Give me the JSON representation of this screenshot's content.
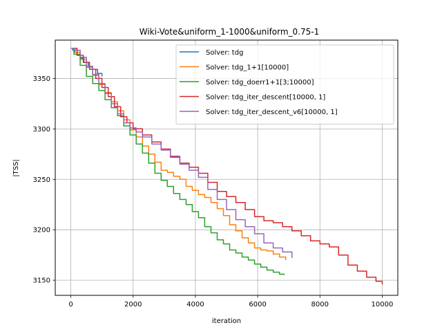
{
  "chart_data": {
    "type": "line",
    "title": "Wiki-Vote&uniform_1-1000&uniform_0.75-1",
    "xlabel": "iteration",
    "ylabel": "|TSS|",
    "xlim": [
      -500,
      10500
    ],
    "ylim": [
      3135,
      3388
    ],
    "xticks": [
      0,
      2000,
      4000,
      6000,
      8000,
      10000
    ],
    "yticks": [
      3150,
      3200,
      3250,
      3300,
      3350
    ],
    "grid": true,
    "legend_position": "top-right",
    "series": [
      {
        "name": "Solver: tdg",
        "color": "#1f77b4",
        "x": [
          0,
          60,
          120,
          200,
          300,
          420,
          560,
          700,
          860,
          1000
        ],
        "y": [
          3380,
          3378,
          3376,
          3373,
          3370,
          3366,
          3362,
          3359,
          3355,
          3352
        ]
      },
      {
        "name": "Solver: tdg_1+1[10000]",
        "color": "#ff7f0e",
        "x": [
          0,
          100,
          300,
          500,
          700,
          900,
          1100,
          1300,
          1500,
          1700,
          1900,
          2100,
          2300,
          2500,
          2700,
          2900,
          3100,
          3300,
          3500,
          3700,
          3900,
          4100,
          4300,
          4500,
          4700,
          4900,
          5100,
          5300,
          5500,
          5700,
          5900,
          6100,
          6300,
          6500,
          6700,
          6900
        ],
        "y": [
          3380,
          3376,
          3369,
          3361,
          3353,
          3344,
          3336,
          3327,
          3318,
          3309,
          3299,
          3292,
          3283,
          3275,
          3267,
          3259,
          3257,
          3253,
          3250,
          3243,
          3239,
          3235,
          3232,
          3227,
          3221,
          3214,
          3205,
          3199,
          3192,
          3187,
          3182,
          3180,
          3179,
          3176,
          3173,
          3170
        ]
      },
      {
        "name": "Solver: tdg_doerr1+1[3;10000]",
        "color": "#2ca02c",
        "x": [
          0,
          100,
          300,
          500,
          700,
          900,
          1100,
          1300,
          1500,
          1700,
          1900,
          2100,
          2300,
          2500,
          2700,
          2900,
          3100,
          3300,
          3500,
          3700,
          3900,
          4100,
          4300,
          4500,
          4700,
          4900,
          5100,
          5300,
          5500,
          5700,
          5900,
          6100,
          6300,
          6500,
          6700,
          6850
        ],
        "y": [
          3380,
          3374,
          3363,
          3352,
          3345,
          3338,
          3329,
          3321,
          3313,
          3303,
          3294,
          3285,
          3276,
          3266,
          3256,
          3249,
          3243,
          3236,
          3230,
          3225,
          3218,
          3212,
          3203,
          3197,
          3190,
          3186,
          3180,
          3177,
          3173,
          3170,
          3166,
          3163,
          3160,
          3158,
          3156,
          3155
        ]
      },
      {
        "name": "Solver: tdg_iter_descent[10000, 1]",
        "color": "#d62728",
        "x": [
          0,
          200,
          400,
          600,
          800,
          1000,
          1200,
          1400,
          1600,
          1800,
          2000,
          2300,
          2600,
          2900,
          3200,
          3500,
          3800,
          4100,
          4400,
          4700,
          5000,
          5300,
          5600,
          5900,
          6200,
          6500,
          6800,
          7100,
          7400,
          7700,
          8000,
          8300,
          8600,
          8900,
          9200,
          9500,
          9800,
          10000
        ],
        "y": [
          3380,
          3373,
          3366,
          3359,
          3350,
          3341,
          3332,
          3322,
          3312,
          3306,
          3300,
          3294,
          3287,
          3280,
          3272,
          3266,
          3262,
          3256,
          3247,
          3238,
          3233,
          3227,
          3220,
          3213,
          3209,
          3207,
          3203,
          3199,
          3194,
          3189,
          3186,
          3183,
          3175,
          3165,
          3159,
          3153,
          3149,
          3146
        ]
      },
      {
        "name": "Solver: tdg_iter_descent_v6[10000, 1]",
        "color": "#9467bd",
        "x": [
          0,
          150,
          300,
          500,
          700,
          900,
          1100,
          1300,
          1500,
          1700,
          1900,
          2100,
          2300,
          2600,
          2900,
          3200,
          3500,
          3800,
          4100,
          4400,
          4700,
          5000,
          5300,
          5600,
          5900,
          6200,
          6500,
          6800,
          7100
        ],
        "y": [
          3380,
          3378,
          3371,
          3362,
          3354,
          3345,
          3335,
          3325,
          3315,
          3306,
          3301,
          3297,
          3292,
          3285,
          3279,
          3273,
          3265,
          3259,
          3252,
          3240,
          3230,
          3220,
          3210,
          3203,
          3196,
          3187,
          3182,
          3178,
          3172
        ]
      }
    ]
  }
}
